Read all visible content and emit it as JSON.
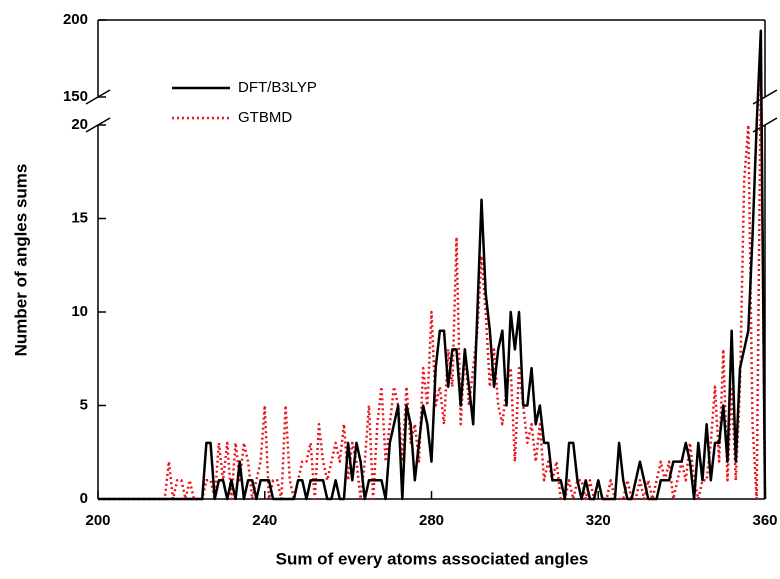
{
  "chart_data": {
    "type": "line",
    "x_label": "Sum of every atoms associated angles",
    "y_label": "Number of angles sums",
    "x": [
      200,
      201,
      202,
      203,
      204,
      205,
      206,
      207,
      208,
      209,
      210,
      211,
      212,
      213,
      214,
      215,
      216,
      217,
      218,
      219,
      220,
      221,
      222,
      223,
      224,
      225,
      226,
      227,
      228,
      229,
      230,
      231,
      232,
      233,
      234,
      235,
      236,
      237,
      238,
      239,
      240,
      241,
      242,
      243,
      244,
      245,
      246,
      247,
      248,
      249,
      250,
      251,
      252,
      253,
      254,
      255,
      256,
      257,
      258,
      259,
      260,
      261,
      262,
      263,
      264,
      265,
      266,
      267,
      268,
      269,
      270,
      271,
      272,
      273,
      274,
      275,
      276,
      277,
      278,
      279,
      280,
      281,
      282,
      283,
      284,
      285,
      286,
      287,
      288,
      289,
      290,
      291,
      292,
      293,
      294,
      295,
      296,
      297,
      298,
      299,
      300,
      301,
      302,
      303,
      304,
      305,
      306,
      307,
      308,
      309,
      310,
      311,
      312,
      313,
      314,
      315,
      316,
      317,
      318,
      319,
      320,
      321,
      322,
      323,
      324,
      325,
      326,
      327,
      328,
      329,
      330,
      331,
      332,
      333,
      334,
      335,
      336,
      337,
      338,
      339,
      340,
      341,
      342,
      343,
      344,
      345,
      346,
      347,
      348,
      349,
      350,
      351,
      352,
      353,
      354,
      355,
      356,
      357,
      358,
      359,
      360
    ],
    "series": [
      {
        "name": "DFT/B3LYP",
        "color": "#000000",
        "dash": "solid",
        "values": [
          0,
          0,
          0,
          0,
          0,
          0,
          0,
          0,
          0,
          0,
          0,
          0,
          0,
          0,
          0,
          0,
          0,
          0,
          0,
          0,
          0,
          0,
          0,
          0,
          0,
          0,
          3,
          3,
          0,
          1,
          1,
          0,
          1,
          0,
          2,
          0,
          1,
          1,
          0,
          1,
          1,
          1,
          0,
          0,
          0,
          0,
          0,
          0,
          1,
          1,
          0,
          1,
          1,
          1,
          1,
          0,
          0,
          1,
          0,
          0,
          3,
          1,
          3,
          2,
          0,
          1,
          1,
          1,
          1,
          0,
          3,
          4,
          5,
          0,
          5,
          4,
          1,
          3,
          5,
          4,
          2,
          7,
          9,
          9,
          6,
          8,
          8,
          5,
          8,
          6,
          4,
          10,
          16,
          11,
          9,
          6,
          8,
          9,
          5,
          10,
          8,
          10,
          5,
          5,
          7,
          4,
          5,
          3,
          3,
          1,
          1,
          1,
          0,
          3,
          3,
          1,
          0,
          1,
          0,
          0,
          1,
          0,
          0,
          0,
          0,
          3,
          1,
          0,
          0,
          1,
          2,
          1,
          0,
          0,
          0,
          1,
          1,
          1,
          2,
          2,
          2,
          3,
          2,
          0,
          3,
          1,
          4,
          1,
          3,
          3,
          5,
          2,
          9,
          2,
          7,
          8,
          9,
          14,
          20,
          193,
          0
        ]
      },
      {
        "name": "GTBMD",
        "color": "#e8141b",
        "dash": "dotted",
        "values": [
          0,
          0,
          0,
          0,
          0,
          0,
          0,
          0,
          0,
          0,
          0,
          0,
          0,
          0,
          0,
          0,
          0,
          2,
          0,
          1,
          1,
          0,
          1,
          0,
          0,
          0,
          1,
          1,
          0,
          3,
          1,
          3,
          0,
          3,
          1,
          3,
          2,
          0,
          1,
          2,
          5,
          0,
          1,
          1,
          0,
          5,
          1,
          0,
          1,
          2,
          2,
          3,
          0,
          4,
          2,
          1,
          2,
          3,
          2,
          4,
          1,
          3,
          2,
          0,
          2,
          5,
          0,
          4,
          6,
          2,
          4,
          6,
          5,
          2,
          6,
          3,
          4,
          2,
          7,
          5,
          10,
          5,
          6,
          4,
          8,
          6,
          14,
          4,
          8,
          5,
          7,
          9,
          13,
          10,
          6,
          8,
          5,
          4,
          6,
          7,
          2,
          7,
          5,
          3,
          4,
          2,
          4,
          1,
          2,
          1,
          2,
          0,
          0,
          1,
          0,
          1,
          1,
          0,
          1,
          0,
          1,
          0,
          0,
          1,
          0,
          0,
          0,
          1,
          0,
          0,
          1,
          0,
          1,
          0,
          1,
          2,
          1,
          2,
          0,
          1,
          2,
          1,
          3,
          1,
          0,
          1,
          1,
          3,
          6,
          2,
          8,
          1,
          6,
          1,
          6,
          17,
          20,
          4,
          0,
          165,
          0
        ]
      }
    ],
    "xlim": [
      200,
      360
    ],
    "xticks": [
      200,
      240,
      280,
      320,
      360
    ],
    "ylim": [
      0,
      200
    ],
    "ybreak": [
      20,
      150
    ],
    "yticks": [
      0,
      5,
      10,
      15,
      20,
      150,
      200
    ],
    "legend": "upper left"
  }
}
